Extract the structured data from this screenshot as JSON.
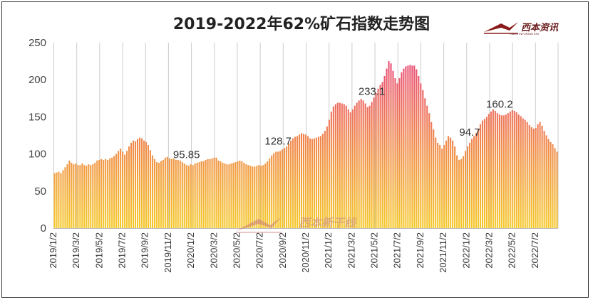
{
  "chart_data": {
    "type": "bar",
    "title": "2019-2022年62%矿石指数走势图",
    "xlabel": "",
    "ylabel": "",
    "ylim": [
      0,
      250
    ],
    "yticks": [
      0,
      50,
      100,
      150,
      200,
      250
    ],
    "x_tick_labels": [
      "2019/1/2",
      "2019/3/2",
      "2019/5/2",
      "2019/7/2",
      "2019/9/2",
      "2019/11/2",
      "2020/1/2",
      "2020/3/2",
      "2020/5/2",
      "2020/7/2",
      "2020/9/2",
      "2020/11/2",
      "2021/1/2",
      "2021/3/2",
      "2021/5/2",
      "2021/7/2",
      "2021/9/2",
      "2021/11/2",
      "2022/1/2",
      "2022/3/2",
      "2022/5/2",
      "2022/7/2"
    ],
    "grid": "vertical",
    "legend": "none",
    "gradient_colors": {
      "top": "#e8407e",
      "bottom": "#f5c92a"
    },
    "frequency": "semi-weekly",
    "start_date": "2019/1/2",
    "end_date": "2022/8/22",
    "values": [
      74,
      75,
      76,
      74,
      78,
      82,
      86,
      91,
      88,
      86,
      87,
      85,
      85,
      87,
      85,
      84,
      86,
      85,
      86,
      88,
      91,
      92,
      93,
      92,
      93,
      92,
      94,
      95,
      97,
      100,
      104,
      107,
      103,
      99,
      104,
      110,
      115,
      118,
      117,
      120,
      122,
      121,
      118,
      116,
      112,
      105,
      98,
      93,
      89,
      88,
      90,
      92,
      95,
      96,
      94,
      93,
      94,
      92,
      92,
      91,
      89,
      87,
      85,
      84,
      86,
      85,
      87,
      88,
      89,
      90,
      90,
      92,
      93,
      93,
      94,
      95,
      95,
      91,
      90,
      88,
      87,
      86,
      86,
      87,
      88,
      89,
      90,
      91,
      90,
      88,
      86,
      85,
      84,
      83,
      83,
      84,
      85,
      84,
      85,
      87,
      90,
      94,
      98,
      101,
      103,
      103,
      104,
      106,
      108,
      110,
      114,
      118,
      121,
      123,
      124,
      126,
      128,
      127,
      126,
      124,
      121,
      120,
      121,
      122,
      123,
      124,
      127,
      131,
      137,
      146,
      157,
      164,
      167,
      169,
      169,
      168,
      167,
      165,
      160,
      156,
      160,
      165,
      169,
      172,
      174,
      172,
      168,
      163,
      165,
      170,
      176,
      182,
      188,
      193,
      197,
      205,
      215,
      225,
      222,
      212,
      202,
      195,
      202,
      210,
      215,
      218,
      219,
      220,
      219,
      219,
      214,
      205,
      195,
      186,
      175,
      165,
      155,
      143,
      133,
      122,
      115,
      112,
      107,
      112,
      118,
      124,
      122,
      118,
      110,
      98,
      92,
      93,
      97,
      104,
      110,
      115,
      120,
      124,
      128,
      133,
      140,
      145,
      147,
      150,
      154,
      157,
      160,
      158,
      155,
      153,
      152,
      152,
      153,
      155,
      157,
      159,
      158,
      156,
      153,
      151,
      148,
      146,
      143,
      139,
      136,
      134,
      135,
      140,
      143,
      138,
      131,
      125,
      120,
      116,
      113,
      108,
      103
    ]
  },
  "annotations": [
    {
      "label": "95.85",
      "x_index": 62
    },
    {
      "label": "128.7",
      "x_index": 105
    },
    {
      "label": "233.1",
      "x_index": 149
    },
    {
      "label": "94.7",
      "x_index": 195
    },
    {
      "label": "160.2",
      "x_index": 209
    }
  ],
  "logo": {
    "name": "西本资讯",
    "subtitle": "XIBEN INFORMATION"
  },
  "watermark": {
    "name": "西本新干线"
  }
}
